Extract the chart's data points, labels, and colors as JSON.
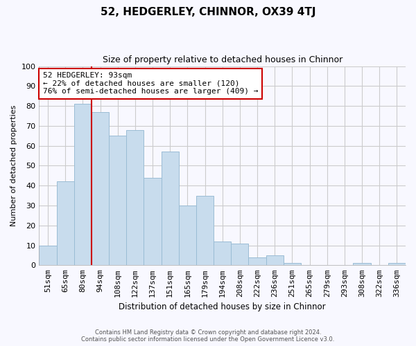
{
  "title": "52, HEDGERLEY, CHINNOR, OX39 4TJ",
  "subtitle": "Size of property relative to detached houses in Chinnor",
  "xlabel": "Distribution of detached houses by size in Chinnor",
  "ylabel": "Number of detached properties",
  "footer_line1": "Contains HM Land Registry data © Crown copyright and database right 2024.",
  "footer_line2": "Contains public sector information licensed under the Open Government Licence v3.0.",
  "bin_labels": [
    "51sqm",
    "65sqm",
    "80sqm",
    "94sqm",
    "108sqm",
    "122sqm",
    "137sqm",
    "151sqm",
    "165sqm",
    "179sqm",
    "194sqm",
    "208sqm",
    "222sqm",
    "236sqm",
    "251sqm",
    "265sqm",
    "279sqm",
    "293sqm",
    "308sqm",
    "322sqm",
    "336sqm"
  ],
  "bar_heights": [
    10,
    42,
    81,
    77,
    65,
    68,
    44,
    57,
    30,
    35,
    12,
    11,
    4,
    5,
    1,
    0,
    0,
    0,
    1,
    0,
    1
  ],
  "bar_color": "#c8dced",
  "bar_edge_color": "#9abcd4",
  "vline_x_index": 3,
  "vline_color": "#cc0000",
  "annotation_title": "52 HEDGERLEY: 93sqm",
  "annotation_line1": "← 22% of detached houses are smaller (120)",
  "annotation_line2": "76% of semi-detached houses are larger (409) →",
  "annotation_box_color": "#ffffff",
  "annotation_box_edge_color": "#cc0000",
  "ylim": [
    0,
    100
  ],
  "yticks": [
    0,
    10,
    20,
    30,
    40,
    50,
    60,
    70,
    80,
    90,
    100
  ],
  "background_color": "#f8f8ff",
  "grid_color": "#cccccc"
}
